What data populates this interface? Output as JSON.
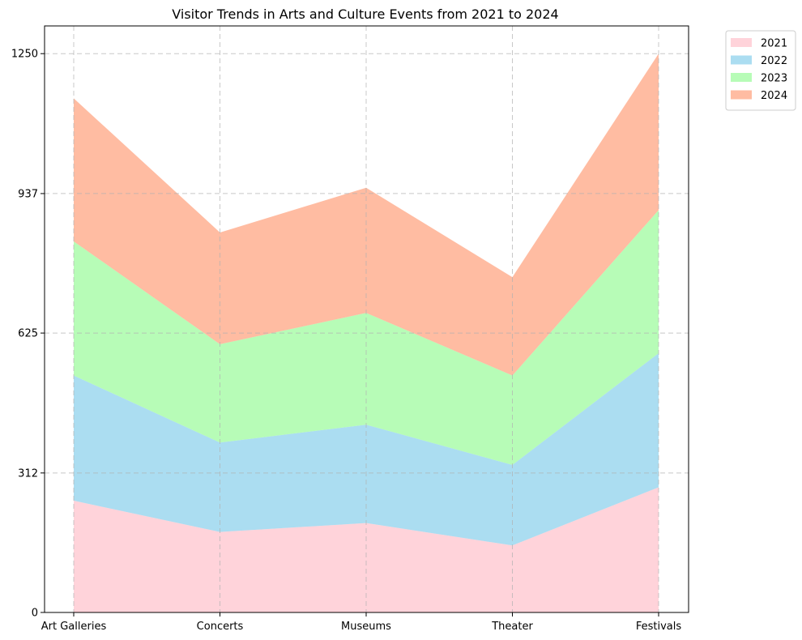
{
  "chart_data": {
    "type": "area",
    "stacked": true,
    "title": "Visitor Trends in Arts and Culture Events from 2021 to 2024",
    "xlabel": "",
    "ylabel": "",
    "categories": [
      "Art Galleries",
      "Concerts",
      "Museums",
      "Theater",
      "Festivals"
    ],
    "series": [
      {
        "name": "2021",
        "values": [
          250,
          180,
          200,
          150,
          280
        ],
        "color": "#ffc0cb"
      },
      {
        "name": "2022",
        "values": [
          280,
          200,
          220,
          180,
          300
        ],
        "color": "#87ceeb"
      },
      {
        "name": "2023",
        "values": [
          300,
          220,
          250,
          200,
          320
        ],
        "color": "#98fb98"
      },
      {
        "name": "2024",
        "values": [
          320,
          250,
          280,
          220,
          350
        ],
        "color": "#ffa07a"
      }
    ],
    "ylim": [
      0,
      1312
    ],
    "yticks": [
      0,
      312,
      625,
      937,
      1250
    ],
    "area_alpha": 0.7,
    "grid": true,
    "grid_style": "dashed",
    "legend": "upper-right-outside"
  }
}
